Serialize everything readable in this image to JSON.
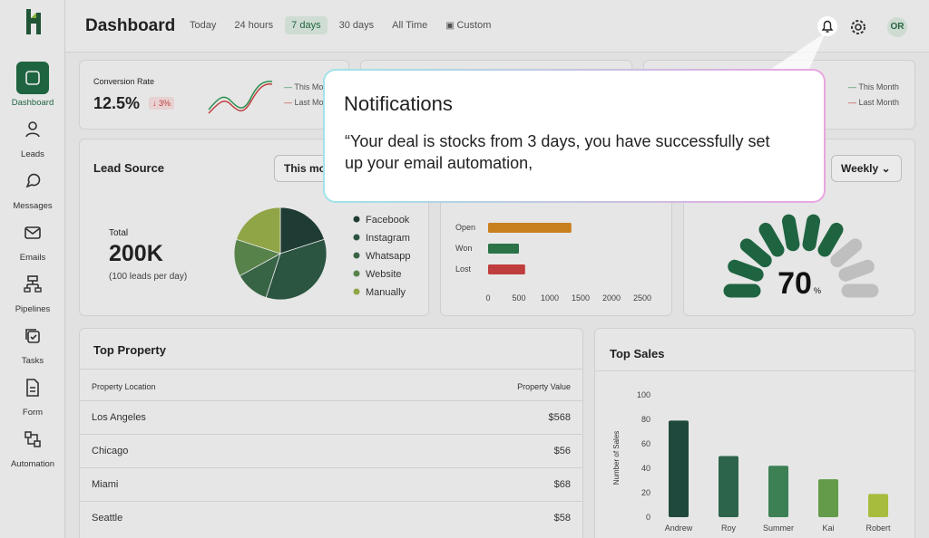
{
  "sidebar": {
    "items": [
      "Dashboard",
      "Leads",
      "Messages",
      "Emails",
      "Pipelines",
      "Tasks",
      "Form",
      "Automation"
    ],
    "active": "Dashboard"
  },
  "header": {
    "title": "Dashboard",
    "filters": [
      "Today",
      "24 hours",
      "7 days",
      "30 days",
      "All Time",
      "Custom"
    ],
    "active_filter": "7 days",
    "avatar": "OR"
  },
  "conversion": {
    "title": "Conversion Rate",
    "value": "12.5%",
    "change": "3%",
    "legend": [
      "This Month",
      "Last Month"
    ]
  },
  "stat_card_3": {
    "legend": [
      "This Month",
      "Last Month"
    ]
  },
  "lead_source": {
    "title": "Lead Source",
    "dropdown": "This month",
    "total_label": "Total",
    "total": "200K",
    "note": "(100 leads per day)",
    "chart_data": {
      "type": "pie",
      "categories": [
        "Facebook",
        "Instagram",
        "Whatsapp",
        "Website",
        "Manually"
      ],
      "values": [
        20,
        35,
        12,
        13,
        20
      ],
      "colors": [
        "#1f3f36",
        "#2c5a45",
        "#3b6b4a",
        "#5d8d50",
        "#9bb24a"
      ]
    }
  },
  "deals": {
    "chart_data": {
      "type": "hbar",
      "categories": [
        "Open",
        "Won",
        "Lost"
      ],
      "values": [
        1350,
        500,
        600
      ],
      "colors": [
        "#d98a1e",
        "#2c7a4b",
        "#d04040"
      ],
      "xlim": [
        0,
        2500
      ],
      "xticks": [
        0,
        500,
        1000,
        1500,
        2000,
        2500
      ]
    }
  },
  "gauge": {
    "dropdown": "Weekly",
    "value": 70,
    "unit": "%",
    "segments": 10
  },
  "top_property": {
    "title": "Top Property",
    "columns": [
      "Property Location",
      "Property Value"
    ],
    "rows": [
      [
        "Los Angeles",
        "$568"
      ],
      [
        "Chicago",
        "$56"
      ],
      [
        "Miami",
        "$68"
      ],
      [
        "Seattle",
        "$58"
      ]
    ]
  },
  "top_sales": {
    "title": "Top Sales",
    "chart_data": {
      "type": "bar",
      "categories": [
        "Andrew",
        "Roy",
        "Summer",
        "Kai",
        "Robert"
      ],
      "values": [
        79,
        50,
        42,
        31,
        19
      ],
      "colors": [
        "#1f4d40",
        "#2e6b50",
        "#3f8a5a",
        "#6aa84f",
        "#b5cc3f"
      ],
      "ylim": [
        0,
        100
      ],
      "yticks": [
        0,
        20,
        40,
        60,
        80,
        100
      ],
      "ylabel": "Number of Sales"
    }
  },
  "notification": {
    "title": "Notifications",
    "body": "“Your deal is stocks from 3 days, you have successfully set up your email automation,"
  }
}
